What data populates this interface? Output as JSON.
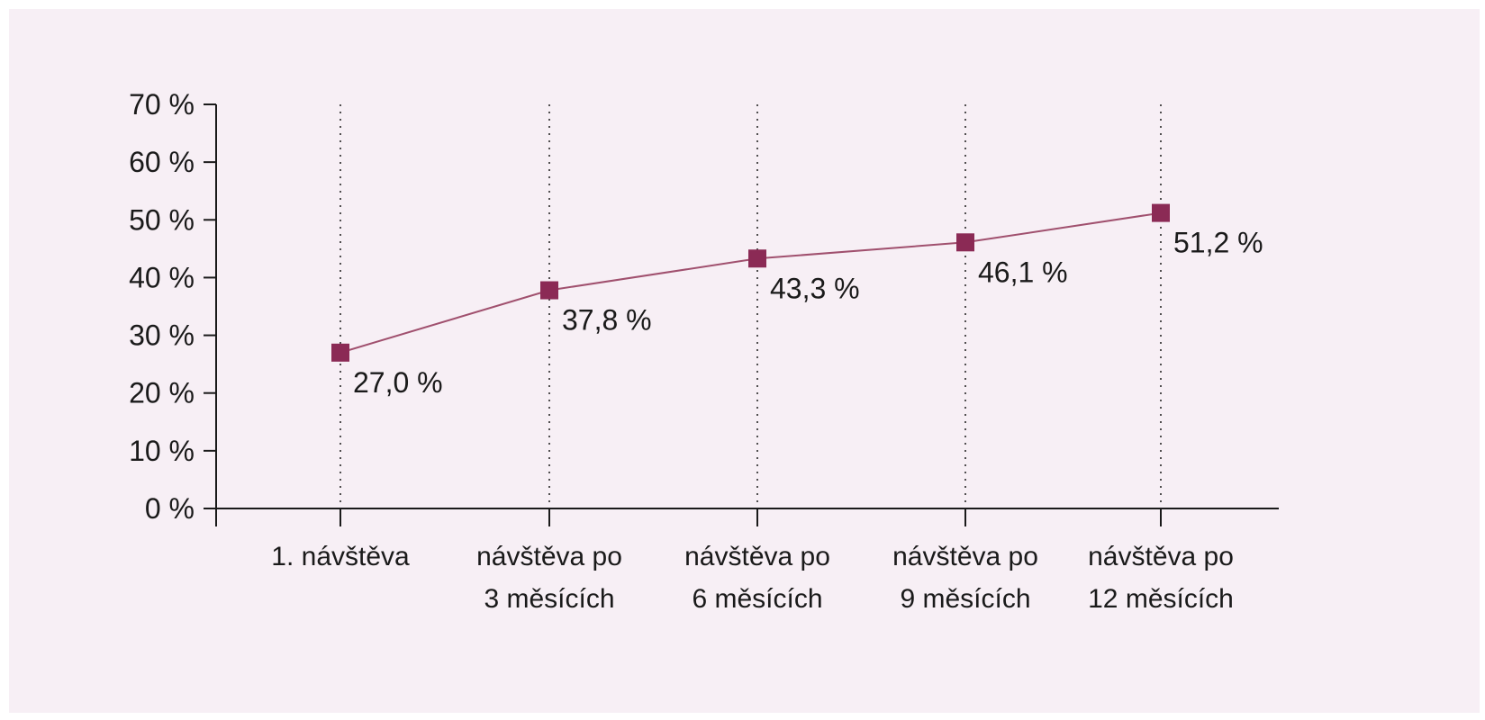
{
  "chart_data": {
    "type": "line",
    "categories": [
      [
        "1. návštěva"
      ],
      [
        "návštěva po",
        "3 měsících"
      ],
      [
        "návštěva po",
        "6 měsících"
      ],
      [
        "návštěva po",
        "9 měsících"
      ],
      [
        "návštěva po",
        "12 měsících"
      ]
    ],
    "values": [
      27.0,
      37.8,
      43.3,
      46.1,
      51.2
    ],
    "data_labels": [
      "27,0 %",
      "37,8 %",
      "43,3 %",
      "46,1 %",
      "51,2 %"
    ],
    "title": "",
    "xlabel": "",
    "ylabel": "",
    "ylim": [
      0,
      70
    ],
    "yticks": [
      0,
      10,
      20,
      30,
      40,
      50,
      60,
      70
    ],
    "ytick_labels": [
      "0 %",
      "10 %",
      "20 %",
      "30 %",
      "40 %",
      "50 %",
      "60 %",
      "70 %"
    ],
    "vertical_grid": "dotted",
    "legend": "none",
    "colors": {
      "line": "#a0506e",
      "marker": "#8b2a55",
      "axis": "#1a1a1a",
      "background": "#f7eff5"
    }
  }
}
